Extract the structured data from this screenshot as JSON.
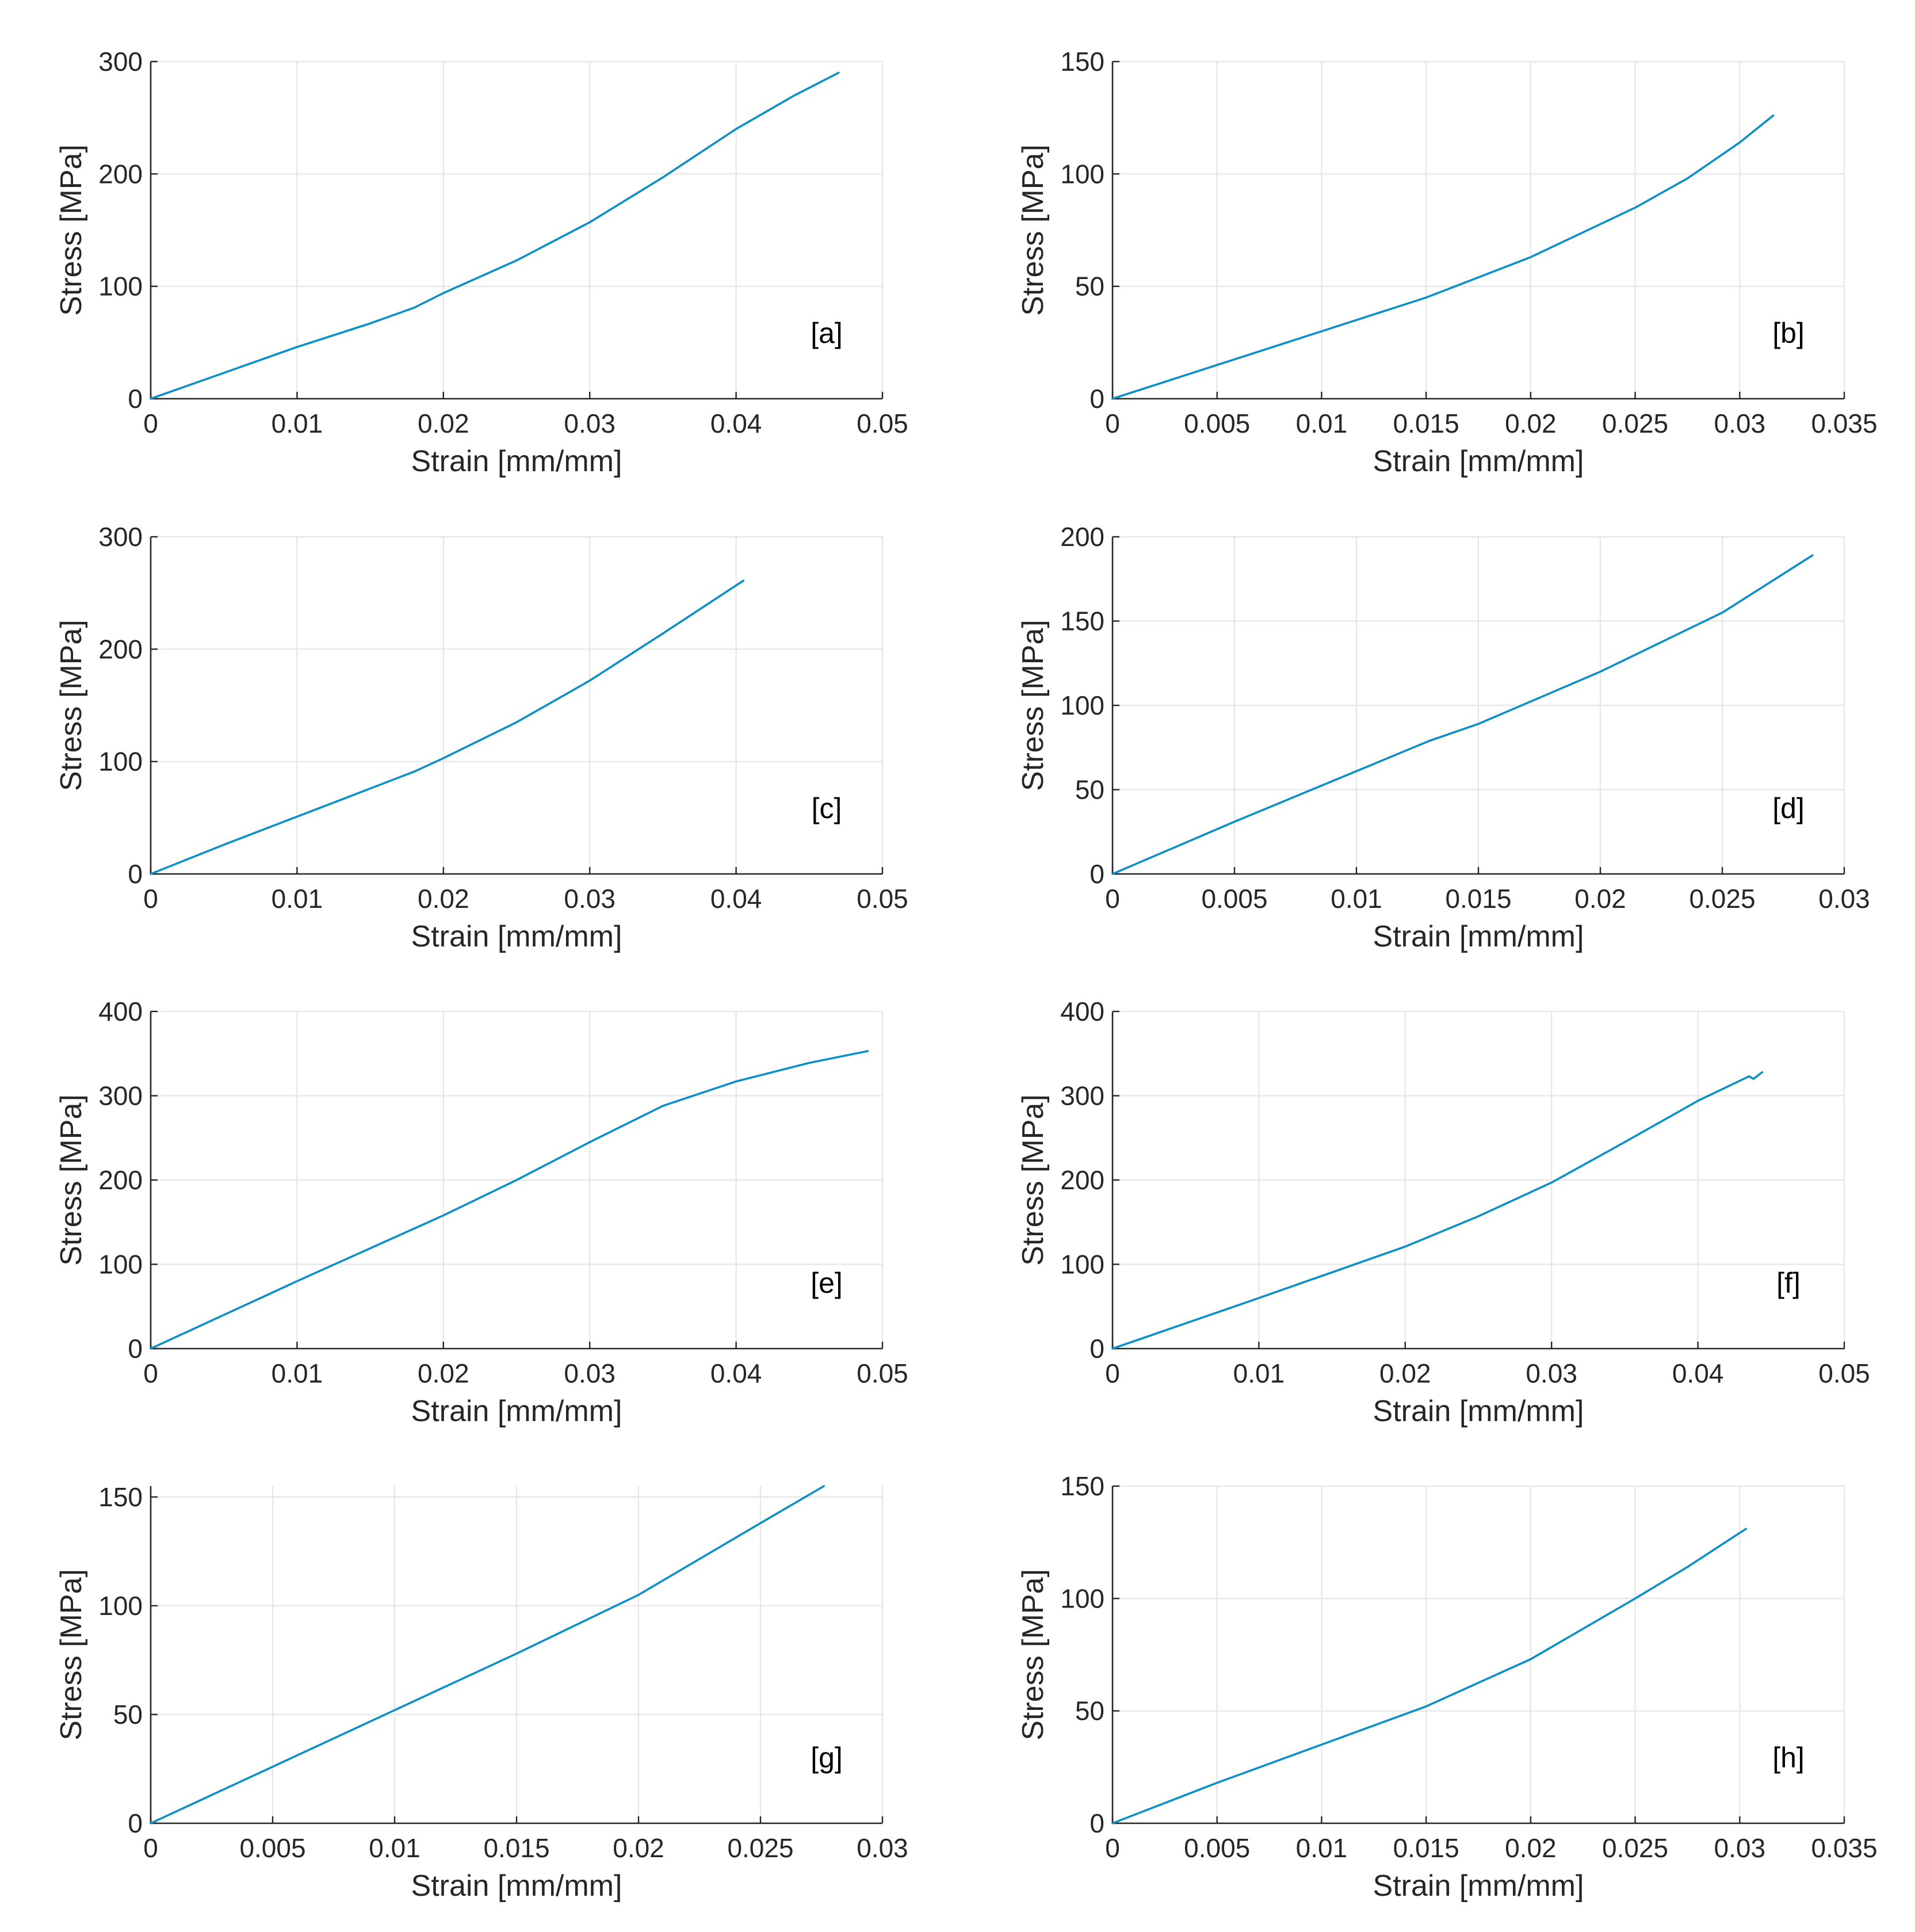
{
  "chart_data": [
    {
      "type": "line",
      "panel": "[a]",
      "xlabel": "Strain [mm/mm]",
      "ylabel": "Stress [MPa]",
      "xlim": [
        0,
        0.05
      ],
      "ylim": [
        0,
        300
      ],
      "xticks": [
        0,
        0.01,
        0.02,
        0.03,
        0.04,
        0.05
      ],
      "xtick_labels": [
        "0",
        "0.01",
        "0.02",
        "0.03",
        "0.04",
        "0.05"
      ],
      "yticks": [
        0,
        100,
        200,
        300
      ],
      "ytick_labels": [
        "0",
        "100",
        "200",
        "300"
      ],
      "grid": true,
      "series": [
        {
          "name": "[a]",
          "x": [
            0,
            0.005,
            0.01,
            0.015,
            0.018,
            0.02,
            0.025,
            0.03,
            0.035,
            0.04,
            0.044,
            0.047
          ],
          "y": [
            0,
            23,
            46,
            67,
            81,
            94,
            123,
            157,
            197,
            240,
            270,
            290
          ]
        }
      ]
    },
    {
      "type": "line",
      "panel": "[b]",
      "xlabel": "Strain [mm/mm]",
      "ylabel": "Stress [MPa]",
      "xlim": [
        0,
        0.035
      ],
      "ylim": [
        0,
        150
      ],
      "xticks": [
        0,
        0.005,
        0.01,
        0.015,
        0.02,
        0.025,
        0.03,
        0.035
      ],
      "xtick_labels": [
        "0",
        "0.005",
        "0.01",
        "0.015",
        "0.02",
        "0.025",
        "0.03",
        "0.035"
      ],
      "yticks": [
        0,
        50,
        100,
        150
      ],
      "ytick_labels": [
        "0",
        "50",
        "100",
        "150"
      ],
      "grid": true,
      "series": [
        {
          "name": "[b]",
          "x": [
            0,
            0.005,
            0.01,
            0.015,
            0.02,
            0.025,
            0.0275,
            0.03,
            0.0316
          ],
          "y": [
            0,
            15,
            30,
            45,
            63,
            85,
            98,
            114,
            126
          ]
        }
      ]
    },
    {
      "type": "line",
      "panel": "[c]",
      "xlabel": "Strain [mm/mm]",
      "ylabel": "Stress [MPa]",
      "xlim": [
        0,
        0.05
      ],
      "ylim": [
        0,
        300
      ],
      "xticks": [
        0,
        0.01,
        0.02,
        0.03,
        0.04,
        0.05
      ],
      "xtick_labels": [
        "0",
        "0.01",
        "0.02",
        "0.03",
        "0.04",
        "0.05"
      ],
      "yticks": [
        0,
        100,
        200,
        300
      ],
      "ytick_labels": [
        "0",
        "100",
        "200",
        "300"
      ],
      "grid": true,
      "series": [
        {
          "name": "[c]",
          "x": [
            0,
            0.005,
            0.01,
            0.015,
            0.018,
            0.02,
            0.025,
            0.03,
            0.035,
            0.0405
          ],
          "y": [
            0,
            26,
            51,
            76,
            91,
            103,
            135,
            172,
            214,
            261
          ]
        }
      ]
    },
    {
      "type": "line",
      "panel": "[d]",
      "xlabel": "Strain [mm/mm]",
      "ylabel": "Stress [MPa]",
      "xlim": [
        0,
        0.03
      ],
      "ylim": [
        0,
        200
      ],
      "xticks": [
        0,
        0.005,
        0.01,
        0.015,
        0.02,
        0.025,
        0.03
      ],
      "xtick_labels": [
        "0",
        "0.005",
        "0.01",
        "0.015",
        "0.02",
        "0.025",
        "0.03"
      ],
      "yticks": [
        0,
        50,
        100,
        150,
        200
      ],
      "ytick_labels": [
        "0",
        "50",
        "100",
        "150",
        "200"
      ],
      "grid": true,
      "series": [
        {
          "name": "[d]",
          "x": [
            0,
            0.005,
            0.01,
            0.013,
            0.015,
            0.02,
            0.025,
            0.0287
          ],
          "y": [
            0,
            31,
            61,
            79,
            89,
            120,
            155,
            189
          ]
        }
      ]
    },
    {
      "type": "line",
      "panel": "[e]",
      "xlabel": "Strain [mm/mm]",
      "ylabel": "Stress [MPa]",
      "xlim": [
        0,
        0.05
      ],
      "ylim": [
        0,
        400
      ],
      "xticks": [
        0,
        0.01,
        0.02,
        0.03,
        0.04,
        0.05
      ],
      "xtick_labels": [
        "0",
        "0.01",
        "0.02",
        "0.03",
        "0.04",
        "0.05"
      ],
      "yticks": [
        0,
        100,
        200,
        300,
        400
      ],
      "ytick_labels": [
        "0",
        "100",
        "200",
        "300",
        "400"
      ],
      "grid": true,
      "series": [
        {
          "name": "[e]",
          "x": [
            0,
            0.01,
            0.02,
            0.025,
            0.03,
            0.035,
            0.04,
            0.045,
            0.049
          ],
          "y": [
            0,
            80,
            158,
            200,
            245,
            288,
            317,
            339,
            353
          ]
        }
      ]
    },
    {
      "type": "line",
      "panel": "[f]",
      "xlabel": "Strain [mm/mm]",
      "ylabel": "Stress [MPa]",
      "xlim": [
        0,
        0.05
      ],
      "ylim": [
        0,
        400
      ],
      "xticks": [
        0,
        0.01,
        0.02,
        0.03,
        0.04,
        0.05
      ],
      "xtick_labels": [
        "0",
        "0.01",
        "0.02",
        "0.03",
        "0.04",
        "0.05"
      ],
      "yticks": [
        0,
        100,
        200,
        300,
        400
      ],
      "ytick_labels": [
        "0",
        "100",
        "200",
        "300",
        "400"
      ],
      "grid": true,
      "series": [
        {
          "name": "[f]",
          "x": [
            0,
            0.01,
            0.02,
            0.025,
            0.03,
            0.035,
            0.04,
            0.0435,
            0.0438,
            0.0444
          ],
          "y": [
            0,
            60,
            121,
            157,
            197,
            245,
            294,
            323,
            320,
            328
          ]
        }
      ]
    },
    {
      "type": "line",
      "panel": "[g]",
      "xlabel": "Strain [mm/mm]",
      "ylabel": "Stress [MPa]",
      "xlim": [
        0,
        0.03
      ],
      "ylim": [
        0,
        155
      ],
      "xticks": [
        0,
        0.005,
        0.01,
        0.015,
        0.02,
        0.025,
        0.03
      ],
      "xtick_labels": [
        "0",
        "0.005",
        "0.01",
        "0.015",
        "0.02",
        "0.025",
        "0.03"
      ],
      "yticks": [
        0,
        50,
        100,
        150
      ],
      "ytick_labels": [
        "0",
        "50",
        "100",
        "150"
      ],
      "grid": true,
      "series": [
        {
          "name": "[g]",
          "x": [
            0,
            0.005,
            0.01,
            0.015,
            0.02,
            0.025,
            0.0276
          ],
          "y": [
            0,
            26,
            52,
            78,
            105,
            138,
            155
          ]
        }
      ]
    },
    {
      "type": "line",
      "panel": "[h]",
      "xlabel": "Strain [mm/mm]",
      "ylabel": "Stress [MPa]",
      "xlim": [
        0,
        0.035
      ],
      "ylim": [
        0,
        150
      ],
      "xticks": [
        0,
        0.005,
        0.01,
        0.015,
        0.02,
        0.025,
        0.03,
        0.035
      ],
      "xtick_labels": [
        "0",
        "0.005",
        "0.01",
        "0.015",
        "0.02",
        "0.025",
        "0.03",
        "0.035"
      ],
      "yticks": [
        0,
        50,
        100,
        150
      ],
      "ytick_labels": [
        "0",
        "50",
        "100",
        "150"
      ],
      "grid": true,
      "series": [
        {
          "name": "[h]",
          "x": [
            0,
            0.005,
            0.01,
            0.015,
            0.02,
            0.025,
            0.0275,
            0.0303
          ],
          "y": [
            0,
            18,
            35,
            52,
            73,
            100,
            114,
            131
          ]
        }
      ]
    }
  ]
}
